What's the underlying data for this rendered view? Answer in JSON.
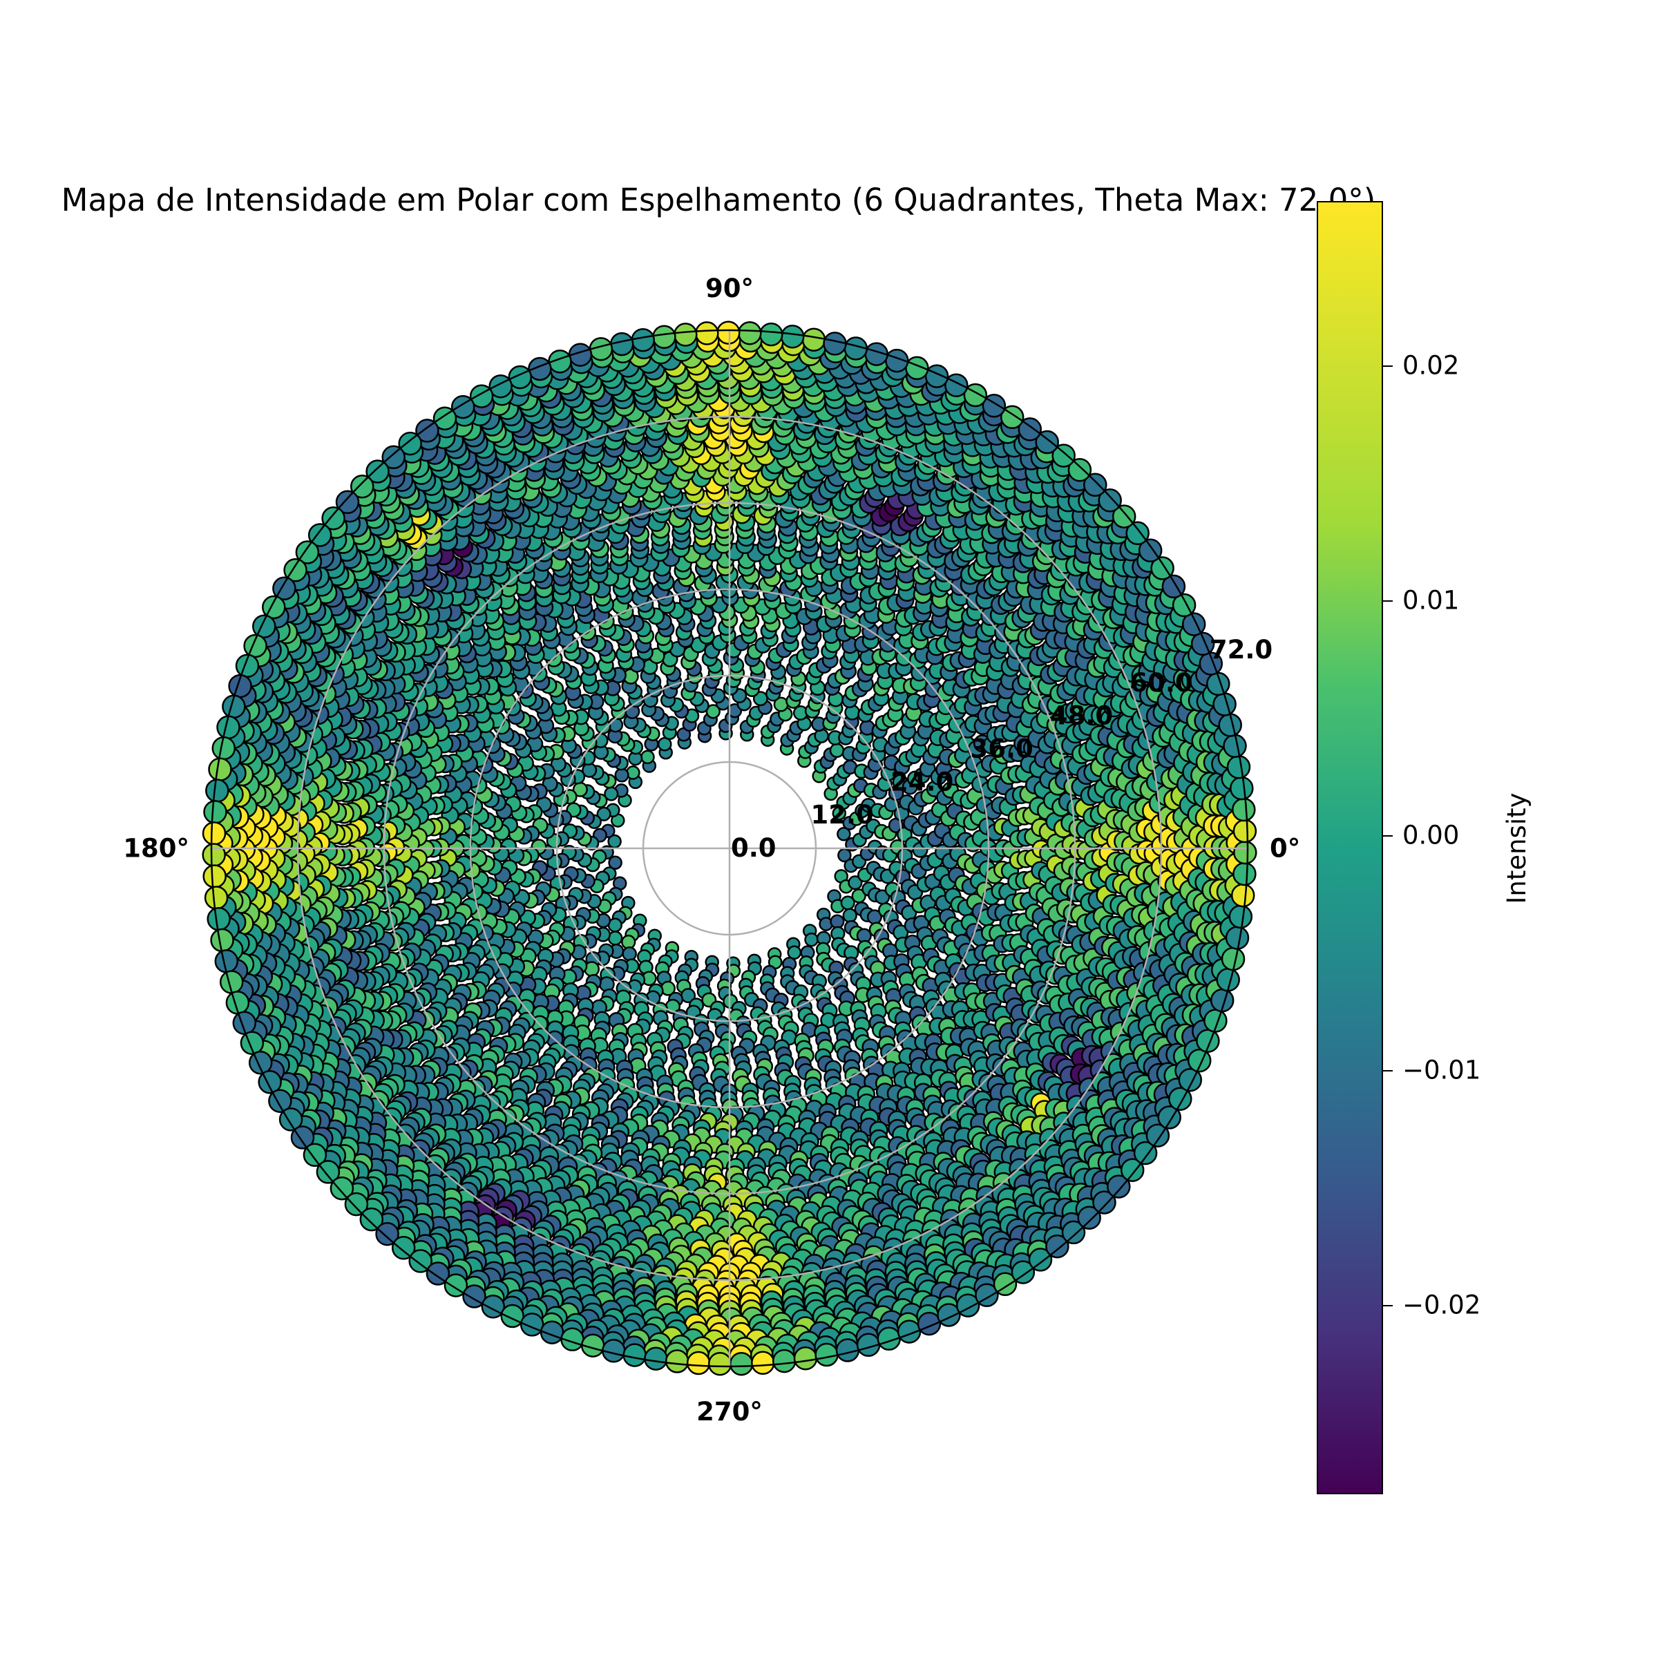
{
  "chart_data": {
    "type": "scatter",
    "projection": "polar",
    "title": "Mapa de Intensidade em Polar com Espelhamento (6 Quadrantes, Theta Max: 72.0°)",
    "angle_labels": [
      {
        "angle_deg": 0,
        "text": "0°"
      },
      {
        "angle_deg": 90,
        "text": "90°"
      },
      {
        "angle_deg": 180,
        "text": "180°"
      },
      {
        "angle_deg": 270,
        "text": "270°"
      }
    ],
    "radial_ticks": [
      0.0,
      12.0,
      24.0,
      36.0,
      48.0,
      60.0,
      72.0
    ],
    "radial_tick_labels": [
      "0.0",
      "12.0",
      "24.0",
      "36.0",
      "48.0",
      "60.0",
      "72.0"
    ],
    "rlim": [
      0,
      72
    ],
    "data_r_range": [
      16,
      72
    ],
    "grid": true,
    "marker": "circle",
    "marker_edgecolor": "#000000",
    "colormap": "viridis",
    "colorbar": {
      "label": "Intensity",
      "vmin": -0.028,
      "vmax": 0.027,
      "ticks": [
        0.02,
        0.01,
        0.0,
        -0.01,
        -0.02
      ],
      "tick_labels": [
        "0.02",
        "0.01",
        "0.00",
        "−0.01",
        "−0.02"
      ]
    },
    "notable_points": [
      {
        "theta_deg": 0,
        "r": 60,
        "intensity": 0.023
      },
      {
        "theta_deg": 180,
        "r": 66,
        "intensity": 0.024
      },
      {
        "theta_deg": 90,
        "r": 58,
        "intensity": 0.025
      },
      {
        "theta_deg": 270,
        "r": 60,
        "intensity": 0.024
      },
      {
        "theta_deg": 135,
        "r": 62,
        "intensity": 0.027
      },
      {
        "theta_deg": 320,
        "r": 57,
        "intensity": 0.027
      },
      {
        "theta_deg": 64,
        "r": 52,
        "intensity": -0.027
      },
      {
        "theta_deg": 133,
        "r": 56,
        "intensity": -0.026
      },
      {
        "theta_deg": 238,
        "r": 60,
        "intensity": -0.027
      },
      {
        "theta_deg": 327,
        "r": 57,
        "intensity": -0.026
      }
    ]
  }
}
